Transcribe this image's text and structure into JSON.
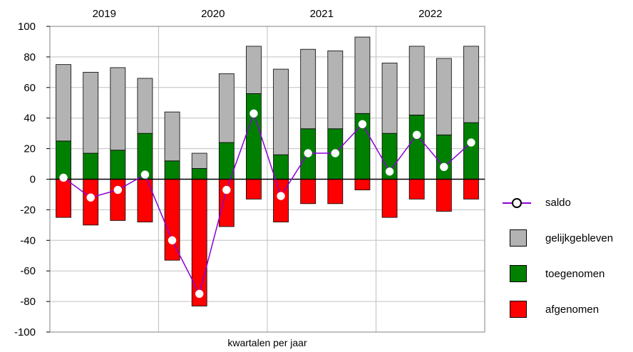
{
  "chart_data": {
    "type": "bar",
    "subtype": "stacked bar with line",
    "title": "",
    "xlabel": "kwartalen per jaar",
    "ylabel": "",
    "ylim": [
      -100,
      100
    ],
    "yticks": [
      -100,
      -80,
      -60,
      -40,
      -20,
      0,
      20,
      40,
      60,
      80,
      100
    ],
    "years": [
      "2019",
      "2020",
      "2021",
      "2022"
    ],
    "quarters_per_year": 4,
    "grid": true,
    "legend_position": "right",
    "series": [
      {
        "name": "toegenomen",
        "color": "#008000",
        "values": [
          25,
          17,
          19,
          30,
          12,
          7,
          24,
          56,
          16,
          33,
          33,
          43,
          30,
          42,
          29,
          37
        ]
      },
      {
        "name": "gelijkgebleven",
        "color": "#b3b3b3",
        "values": [
          50,
          53,
          54,
          36,
          32,
          10,
          45,
          31,
          56,
          52,
          51,
          50,
          46,
          45,
          50,
          50
        ]
      },
      {
        "name": "afgenomen",
        "color": "#ff0000",
        "values": [
          -25,
          -30,
          -27,
          -28,
          -53,
          -83,
          -31,
          -13,
          -28,
          -16,
          -16,
          -7,
          -25,
          -13,
          -21,
          -13
        ]
      },
      {
        "name": "saldo",
        "type": "line",
        "color": "#8b00d4",
        "values": [
          1,
          -12,
          -7,
          3,
          -40,
          -75,
          -7,
          43,
          -11,
          17,
          17,
          36,
          5,
          29,
          8,
          24
        ]
      }
    ],
    "legend": [
      {
        "name": "saldo",
        "kind": "line",
        "color": "#8b00d4"
      },
      {
        "name": "gelijkgebleven",
        "kind": "box",
        "color": "#b3b3b3"
      },
      {
        "name": "toegenomen",
        "kind": "box",
        "color": "#008000"
      },
      {
        "name": "afgenomen",
        "kind": "box",
        "color": "#ff0000"
      }
    ]
  }
}
